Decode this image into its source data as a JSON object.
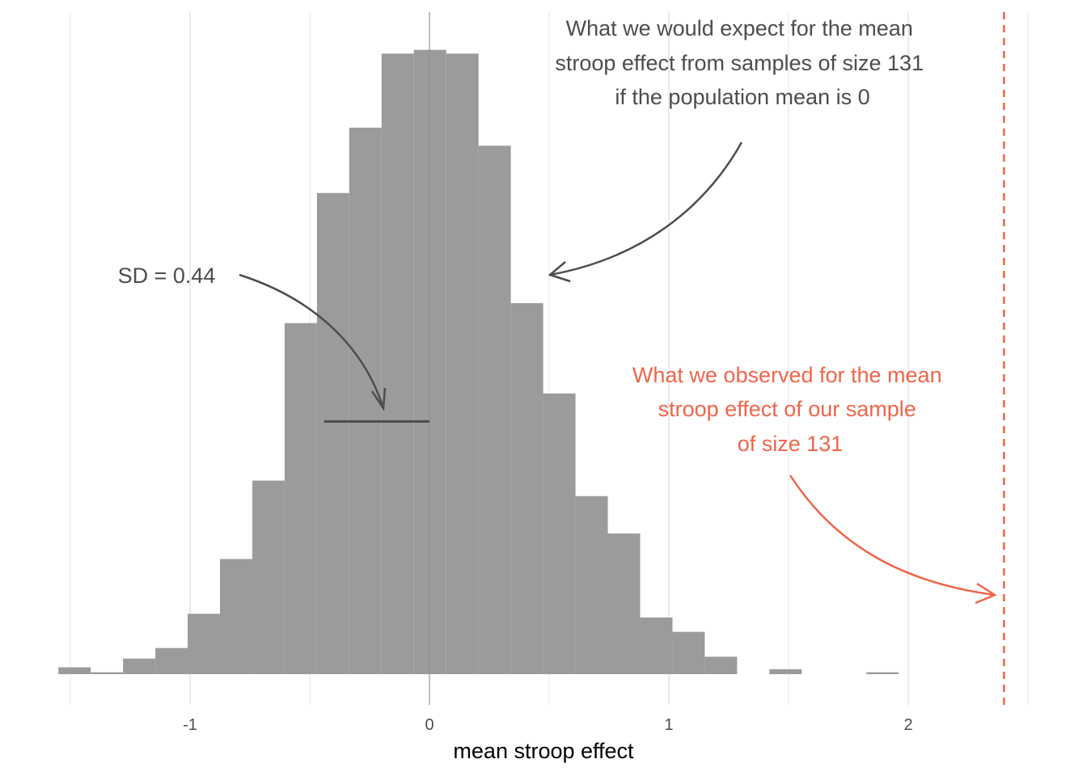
{
  "chart_data": {
    "type": "histogram",
    "xlabel": "mean stroop effect",
    "ylabel": "",
    "xlim": [
      -1.55,
      2.5
    ],
    "ylim": [
      0,
      1000
    ],
    "grid": "vertical only",
    "bin_width": 0.135,
    "bins": [
      {
        "x0": -1.55,
        "x1": -1.415,
        "count": 11
      },
      {
        "x0": -1.415,
        "x1": -1.28,
        "count": 3
      },
      {
        "x0": -1.28,
        "x1": -1.145,
        "count": 25
      },
      {
        "x0": -1.145,
        "x1": -1.01,
        "count": 42
      },
      {
        "x0": -1.01,
        "x1": -0.875,
        "count": 97
      },
      {
        "x0": -0.875,
        "x1": -0.74,
        "count": 185
      },
      {
        "x0": -0.74,
        "x1": -0.605,
        "count": 311
      },
      {
        "x0": -0.605,
        "x1": -0.47,
        "count": 564
      },
      {
        "x0": -0.47,
        "x1": -0.335,
        "count": 773
      },
      {
        "x0": -0.335,
        "x1": -0.2,
        "count": 878
      },
      {
        "x0": -0.2,
        "x1": -0.065,
        "count": 997
      },
      {
        "x0": -0.065,
        "x1": 0.07,
        "count": 1003
      },
      {
        "x0": 0.07,
        "x1": 0.205,
        "count": 997
      },
      {
        "x0": 0.205,
        "x1": 0.34,
        "count": 849
      },
      {
        "x0": 0.34,
        "x1": 0.475,
        "count": 596
      },
      {
        "x0": 0.475,
        "x1": 0.61,
        "count": 451
      },
      {
        "x0": 0.61,
        "x1": 0.745,
        "count": 286
      },
      {
        "x0": 0.745,
        "x1": 0.88,
        "count": 226
      },
      {
        "x0": 0.88,
        "x1": 1.015,
        "count": 91
      },
      {
        "x0": 1.015,
        "x1": 1.15,
        "count": 68
      },
      {
        "x0": 1.15,
        "x1": 1.285,
        "count": 28
      },
      {
        "x0": 1.285,
        "x1": 1.42,
        "count": 0
      },
      {
        "x0": 1.42,
        "x1": 1.555,
        "count": 8
      },
      {
        "x0": 1.555,
        "x1": 1.69,
        "count": 0
      },
      {
        "x0": 1.69,
        "x1": 1.825,
        "count": 0
      },
      {
        "x0": 1.825,
        "x1": 1.96,
        "count": 3
      }
    ],
    "x_ticks": [
      {
        "value": -1,
        "label": "-1"
      },
      {
        "value": 0,
        "label": "0"
      },
      {
        "value": 1,
        "label": "1"
      },
      {
        "value": 2,
        "label": "2"
      }
    ],
    "minor_gridlines": [
      -1.5,
      -0.5,
      0.5,
      1.5,
      2.5
    ],
    "observed_value": 2.4,
    "sd_segment": {
      "from": -0.44,
      "to": 0,
      "count_level": 406
    },
    "annotations": {
      "expected": {
        "lines": [
          "What we would expect for the mean",
          "stroop effect from samples of size 131",
          "if the population mean is 0"
        ],
        "color": "#4d4d4d"
      },
      "sd": {
        "text": "SD = 0.44",
        "color": "#4d4d4d"
      },
      "observed": {
        "lines": [
          "What we observed for the mean",
          "stroop effect of our sample",
          "of size 131"
        ],
        "color": "#f0654a"
      }
    },
    "colors": {
      "bars": "#9b9b9b",
      "grid": "#ebebeb",
      "observed_line": "#f0654a",
      "annotation_dark": "#4d4d4d"
    }
  }
}
